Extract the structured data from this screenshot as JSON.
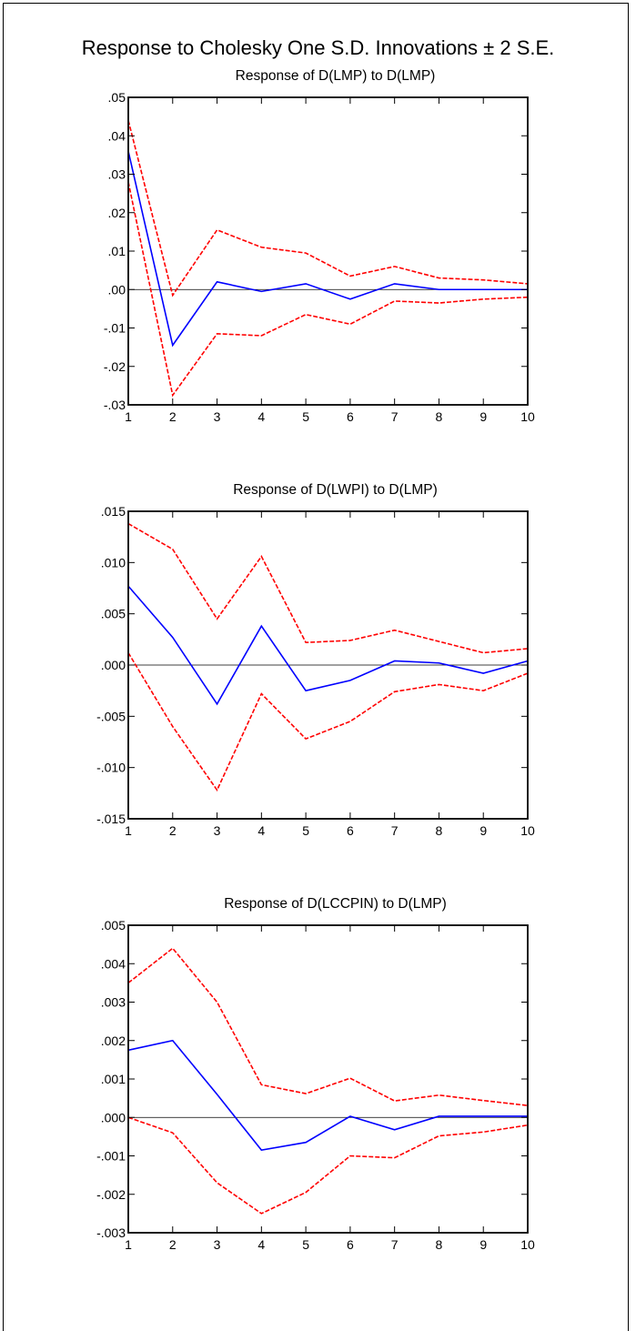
{
  "title": "Response to Cholesky One S.D. Innovations ± 2 S.E.",
  "colors": {
    "response": "#0000ff",
    "bands": "#ff0000",
    "zero": "#000000"
  },
  "chart_data": [
    {
      "type": "line",
      "title": "Response of D(LMP) to D(LMP)",
      "x": [
        1,
        2,
        3,
        4,
        5,
        6,
        7,
        8,
        9,
        10
      ],
      "ylim": [
        -0.03,
        0.05
      ],
      "yticks": [
        0.05,
        0.04,
        0.03,
        0.02,
        0.01,
        0.0,
        -0.01,
        -0.02,
        -0.03
      ],
      "ytick_labels": [
        ".05",
        ".04",
        ".03",
        ".02",
        ".01",
        ".00",
        "-.01",
        "-.02",
        "-.03"
      ],
      "series": [
        {
          "role": "response",
          "style": "solid",
          "values": [
            0.036,
            -0.0145,
            0.002,
            -0.0005,
            0.0015,
            -0.0025,
            0.0015,
            0.0,
            0.0,
            0.0
          ]
        },
        {
          "role": "upper",
          "style": "dashed",
          "values": [
            0.044,
            -0.0015,
            0.0155,
            0.011,
            0.0095,
            0.0035,
            0.006,
            0.003,
            0.0025,
            0.0015
          ]
        },
        {
          "role": "lower",
          "style": "dashed",
          "values": [
            0.028,
            -0.0275,
            -0.0115,
            -0.012,
            -0.0065,
            -0.009,
            -0.003,
            -0.0035,
            -0.0025,
            -0.002
          ]
        }
      ]
    },
    {
      "type": "line",
      "title": "Response of D(LWPI) to D(LMP)",
      "x": [
        1,
        2,
        3,
        4,
        5,
        6,
        7,
        8,
        9,
        10
      ],
      "ylim": [
        -0.015,
        0.015
      ],
      "yticks": [
        0.015,
        0.01,
        0.005,
        0.0,
        -0.005,
        -0.01,
        -0.015
      ],
      "ytick_labels": [
        ".015",
        ".010",
        ".005",
        ".000",
        "-.005",
        "-.010",
        "-.015"
      ],
      "series": [
        {
          "role": "response",
          "style": "solid",
          "values": [
            0.0077,
            0.0027,
            -0.0038,
            0.0038,
            -0.0025,
            -0.0015,
            0.0004,
            0.0002,
            -0.0008,
            0.0004
          ]
        },
        {
          "role": "upper",
          "style": "dashed",
          "values": [
            0.0138,
            0.0113,
            0.0045,
            0.0106,
            0.0022,
            0.0024,
            0.0034,
            0.0023,
            0.0012,
            0.0016
          ]
        },
        {
          "role": "lower",
          "style": "dashed",
          "values": [
            0.0012,
            -0.006,
            -0.0122,
            -0.0028,
            -0.0072,
            -0.0055,
            -0.0026,
            -0.0019,
            -0.0025,
            -0.0008
          ]
        }
      ]
    },
    {
      "type": "line",
      "title": "Response of D(LCCPIN) to D(LMP)",
      "x": [
        1,
        2,
        3,
        4,
        5,
        6,
        7,
        8,
        9,
        10
      ],
      "ylim": [
        -0.003,
        0.005
      ],
      "yticks": [
        0.005,
        0.004,
        0.003,
        0.002,
        0.001,
        0.0,
        -0.001,
        -0.002,
        -0.003
      ],
      "ytick_labels": [
        ".005",
        ".004",
        ".003",
        ".002",
        ".001",
        ".000",
        "-.001",
        "-.002",
        "-.003"
      ],
      "series": [
        {
          "role": "response",
          "style": "solid",
          "values": [
            0.00175,
            0.002,
            0.0006,
            -0.00085,
            -0.00065,
            3e-05,
            -0.00032,
            3e-05,
            3e-05,
            3e-05
          ]
        },
        {
          "role": "upper",
          "style": "dashed",
          "values": [
            0.0035,
            0.0044,
            0.003,
            0.00085,
            0.00062,
            0.00102,
            0.00043,
            0.00058,
            0.00044,
            0.00031
          ]
        },
        {
          "role": "lower",
          "style": "dashed",
          "values": [
            0.0,
            -0.0004,
            -0.0017,
            -0.0025,
            -0.00195,
            -0.001,
            -0.00105,
            -0.00048,
            -0.00038,
            -0.0002
          ]
        }
      ]
    }
  ]
}
